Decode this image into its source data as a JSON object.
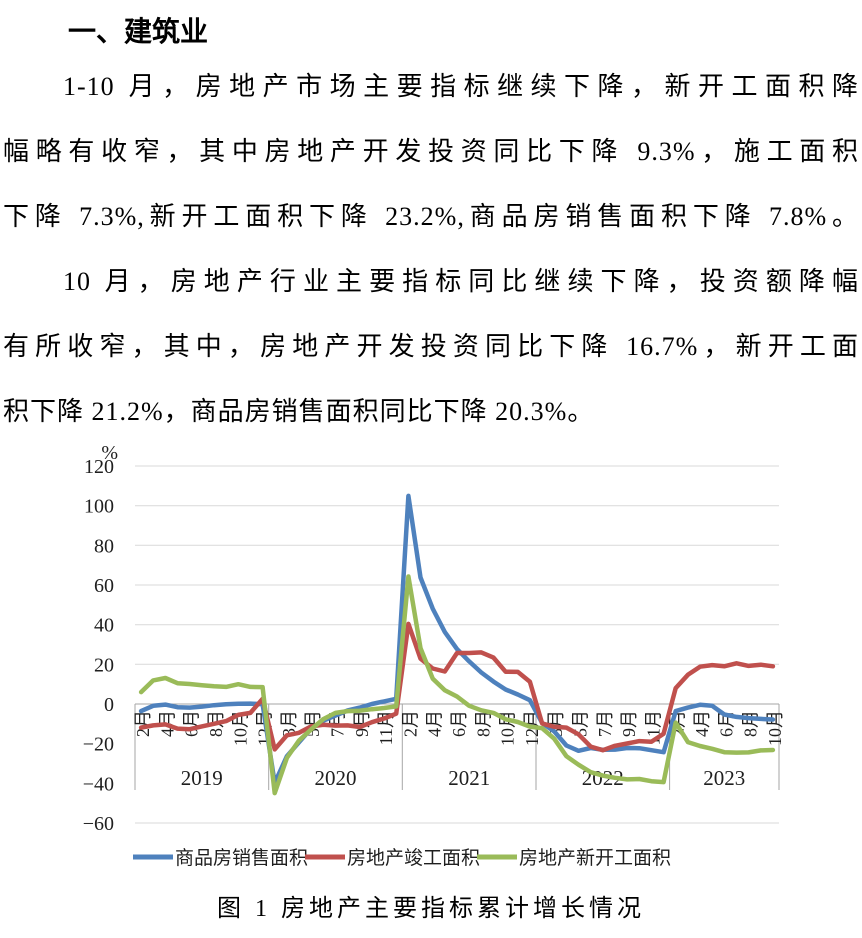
{
  "document": {
    "heading": "一、建筑业",
    "paragraphs": [
      {
        "justify_last": true,
        "lines": [
          "1-10 月，房地产市场主要指标继续下降，新开工面积降",
          "幅略有收窄，其中房地产开发投资同比下降 9.3%，施工面积",
          "下降 7.3%,新开工面积下降 23.2%,商品房销售面积下降 7.8%。"
        ]
      },
      {
        "justify_last": false,
        "lines": [
          "10 月，房地产行业主要指标同比继续下降，投资额降幅",
          "有所收窄，其中，房地产开发投资同比下降 16.7%，新开工面",
          "积下降 21.2%，商品房销售面积同比下降 20.3%。"
        ]
      }
    ]
  },
  "chart_data": {
    "type": "line",
    "title": "图 1 房地产主要指标累计增长情况",
    "y_axis": {
      "unit": "%",
      "min": -60,
      "max": 120,
      "ticks": [
        {
          "label": "120",
          "value": 120,
          "grid": true
        },
        {
          "label": "100",
          "value": 100,
          "grid": true
        },
        {
          "label": "80",
          "value": 80,
          "grid": true
        },
        {
          "label": "60",
          "value": 60,
          "grid": true
        },
        {
          "label": "40",
          "value": 40,
          "grid": true
        },
        {
          "label": "20",
          "value": 20,
          "grid": true
        },
        {
          "label": "0",
          "value": 0,
          "grid": true
        },
        {
          "label": "−20",
          "value": -20,
          "grid": false
        },
        {
          "label": "−40",
          "value": -40,
          "grid": false
        },
        {
          "label": "−60",
          "value": -60,
          "grid": true
        }
      ]
    },
    "year_groups": [
      {
        "label": "2019",
        "count": 11
      },
      {
        "label": "2020",
        "count": 11
      },
      {
        "label": "2021",
        "count": 11
      },
      {
        "label": "2022",
        "count": 11
      },
      {
        "label": "2023",
        "count": 9
      }
    ],
    "months": [
      "2月",
      "3月",
      "4月",
      "5月",
      "6月",
      "7月",
      "8月",
      "9月",
      "10月",
      "11月",
      "12月",
      "2月",
      "3月",
      "4月",
      "5月",
      "6月",
      "7月",
      "8月",
      "9月",
      "10月",
      "11月",
      "12月",
      "2月",
      "3月",
      "4月",
      "5月",
      "6月",
      "7月",
      "8月",
      "9月",
      "10月",
      "11月",
      "12月",
      "2月",
      "3月",
      "4月",
      "5月",
      "6月",
      "7月",
      "8月",
      "9月",
      "10月",
      "11月",
      "12月",
      "2月",
      "3月",
      "4月",
      "5月",
      "6月",
      "7月",
      "8月",
      "9月",
      "10月"
    ],
    "series": [
      {
        "name": "商品房销售面积",
        "color": "#4E81BD",
        "values": [
          -3.6,
          -0.9,
          -0.3,
          -1.6,
          -1.8,
          -1.3,
          -0.6,
          -0.1,
          0.1,
          0.2,
          -0.1,
          -39.9,
          -26.3,
          -19.3,
          -12.3,
          -8.4,
          -5.8,
          -3.3,
          -1.8,
          0.0,
          1.3,
          2.6,
          104.9,
          63.8,
          48.1,
          36.3,
          27.7,
          21.5,
          15.9,
          11.3,
          7.3,
          4.8,
          1.9,
          -9.6,
          -13.8,
          -20.9,
          -23.6,
          -22.2,
          -23.1,
          -23.0,
          -22.2,
          -22.3,
          -23.3,
          -24.3,
          -3.6,
          -1.8,
          -0.4,
          -0.9,
          -5.3,
          -6.5,
          -7.1,
          -7.5,
          -7.8
        ]
      },
      {
        "name": "房地产竣工面积",
        "color": "#C0504D",
        "values": [
          -11.9,
          -10.8,
          -10.3,
          -12.4,
          -12.7,
          -11.3,
          -10.0,
          -8.6,
          -5.5,
          -4.5,
          2.6,
          -22.9,
          -15.8,
          -14.5,
          -11.3,
          -10.5,
          -10.9,
          -10.8,
          -11.6,
          -9.2,
          -7.3,
          -4.9,
          40.4,
          22.9,
          17.9,
          16.4,
          25.7,
          25.7,
          26.0,
          23.4,
          16.3,
          16.2,
          11.2,
          -9.8,
          -11.5,
          -11.9,
          -15.3,
          -21.5,
          -23.3,
          -21.1,
          -19.9,
          -18.7,
          -19.0,
          -15.0,
          8.0,
          14.7,
          18.8,
          19.6,
          19.0,
          20.5,
          19.2,
          19.8,
          19.0
        ]
      },
      {
        "name": "房地产新开工面积",
        "color": "#9ABB59",
        "values": [
          6.0,
          11.9,
          13.1,
          10.5,
          10.1,
          9.5,
          8.9,
          8.6,
          10.0,
          8.6,
          8.5,
          -44.9,
          -27.2,
          -18.4,
          -12.8,
          -7.6,
          -4.5,
          -3.6,
          -3.4,
          -2.6,
          -2.0,
          -1.2,
          64.3,
          28.2,
          12.8,
          6.9,
          3.8,
          -0.9,
          -3.2,
          -4.5,
          -7.7,
          -9.1,
          -11.4,
          -12.2,
          -17.5,
          -26.3,
          -30.6,
          -34.4,
          -36.1,
          -37.2,
          -38.0,
          -37.8,
          -38.9,
          -39.4,
          -9.4,
          -19.2,
          -21.2,
          -22.6,
          -24.3,
          -24.5,
          -24.4,
          -23.4,
          -23.2
        ]
      }
    ],
    "legend_position": "bottom",
    "grid": true
  }
}
